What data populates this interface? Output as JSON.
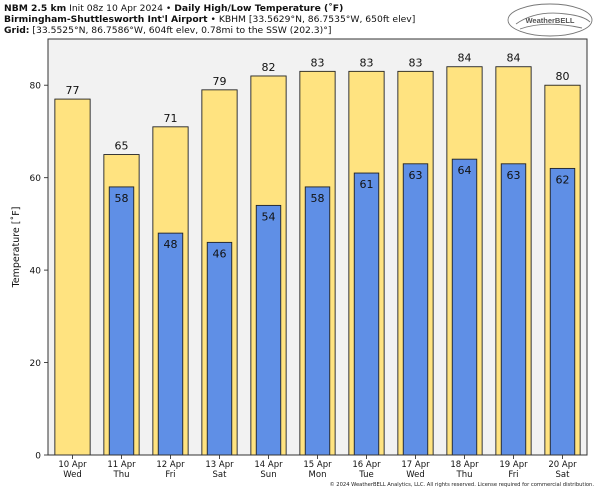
{
  "header": {
    "model": "NBM 2.5 km",
    "init": "Init 08z 10 Apr 2024",
    "bullet": "•",
    "product": "Daily High/Low Temperature (˚F)",
    "station_name": "Birmingham-Shuttlesworth Int'l Airport",
    "station_info": "• KBHM [33.5629°N, 86.7535°W, 650ft elev]",
    "grid_label": "Grid:",
    "grid_info": "[33.5525°N, 86.7586°W, 604ft elev, 0.78mi to the SSW (202.3)°]"
  },
  "logo": {
    "text": "WeatherBELL"
  },
  "copyright": "© 2024 WeatherBELL Analytics, LLC. All rights reserved. License required for commercial distribution.",
  "colors": {
    "high": "#FFE380",
    "low": "#5F8FE6",
    "plot_bg": "#F2F2F2",
    "border": "#333333"
  },
  "chart_data": {
    "type": "bar",
    "title": "Daily High/Low Temperature (˚F)",
    "xlabel": "",
    "ylabel": "Temperature [˚F]",
    "ylim": [
      0,
      90
    ],
    "yticks": [
      0,
      20,
      40,
      60,
      80
    ],
    "grid": false,
    "categories": [
      {
        "date": "10 Apr",
        "day": "Wed"
      },
      {
        "date": "11 Apr",
        "day": "Thu"
      },
      {
        "date": "12 Apr",
        "day": "Fri"
      },
      {
        "date": "13 Apr",
        "day": "Sat"
      },
      {
        "date": "14 Apr",
        "day": "Sun"
      },
      {
        "date": "15 Apr",
        "day": "Mon"
      },
      {
        "date": "16 Apr",
        "day": "Tue"
      },
      {
        "date": "17 Apr",
        "day": "Wed"
      },
      {
        "date": "18 Apr",
        "day": "Thu"
      },
      {
        "date": "19 Apr",
        "day": "Fri"
      },
      {
        "date": "20 Apr",
        "day": "Sat"
      }
    ],
    "series": [
      {
        "name": "High",
        "color": "#FFE380",
        "values": [
          77,
          65,
          71,
          79,
          82,
          83,
          83,
          83,
          84,
          84,
          80
        ]
      },
      {
        "name": "Low",
        "color": "#5F8FE6",
        "values": [
          null,
          58,
          48,
          46,
          54,
          58,
          61,
          63,
          64,
          63,
          62
        ]
      }
    ]
  }
}
